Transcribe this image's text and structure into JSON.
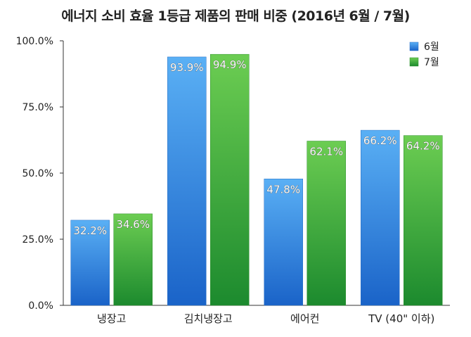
{
  "chart_data": {
    "type": "bar",
    "title": "에너지 소비 효율 1등급 제품의 판매 비중 (2016년 6월 / 7월)",
    "categories": [
      "냉장고",
      "김치냉장고",
      "에어컨",
      "TV (40\" 이하)"
    ],
    "series": [
      {
        "name": "6월",
        "values": [
          32.2,
          93.9,
          47.8,
          66.2
        ],
        "color": "#3a8ee6"
      },
      {
        "name": "7월",
        "values": [
          34.6,
          94.9,
          62.1,
          64.2
        ],
        "color": "#3cae3c"
      }
    ],
    "value_labels": [
      [
        "32.2%",
        "93.9%",
        "47.8%",
        "66.2%"
      ],
      [
        "34.6%",
        "94.9%",
        "62.1%",
        "64.2%"
      ]
    ],
    "yticks": [
      "0.0%",
      "25.0%",
      "50.0%",
      "75.0%",
      "100.0%"
    ],
    "ytick_values": [
      0,
      25,
      50,
      75,
      100
    ],
    "ylim": [
      0,
      100
    ],
    "xlabel": "",
    "ylabel": "",
    "grid": false,
    "legend_position": "top-right"
  }
}
